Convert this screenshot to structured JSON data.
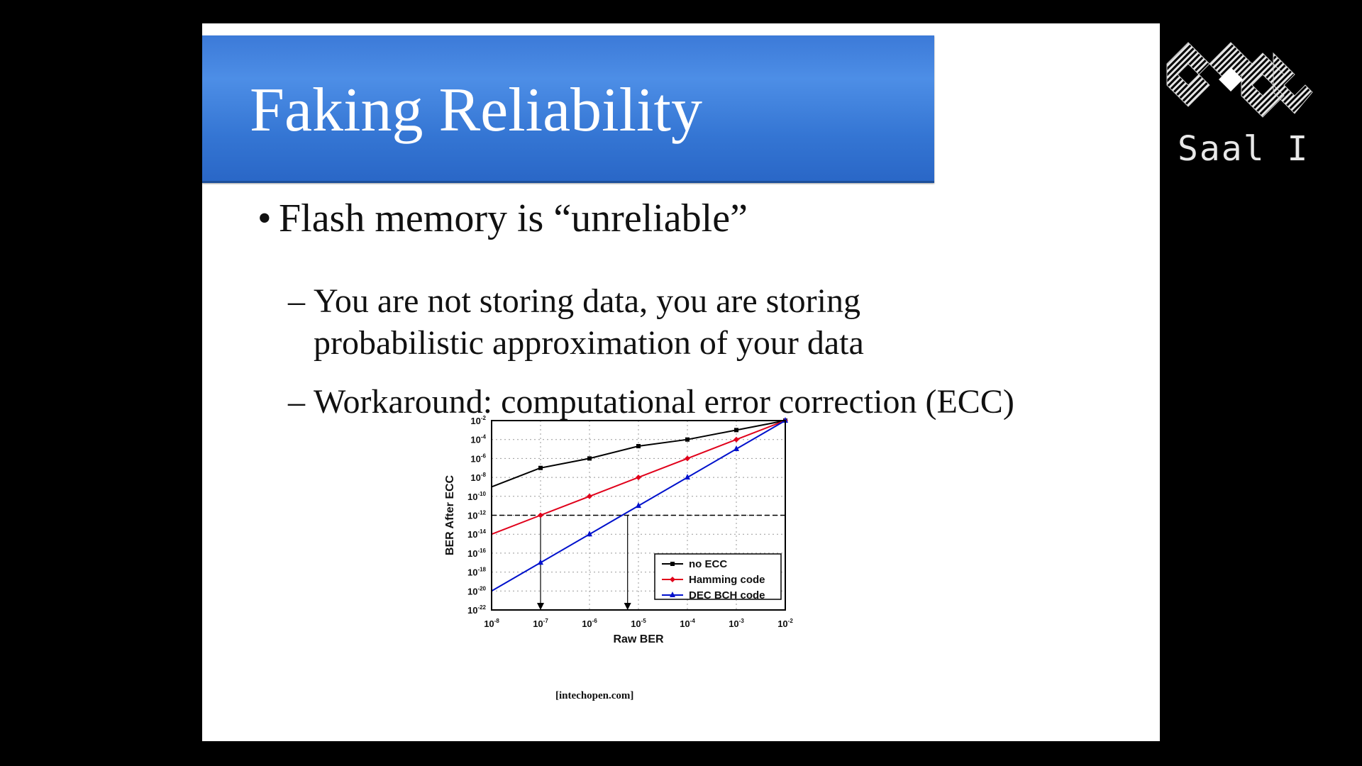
{
  "slide": {
    "title": "Faking Reliability",
    "bullet": "•",
    "bullet_text": "Flash memory is “unreliable”",
    "dash": "–",
    "sub1": "You are not storing data, you are storing probabilistic approximation of your data",
    "sub2": "Workaround: computational error correction (ECC)",
    "credit": "[intechopen.com]"
  },
  "overlay": {
    "room_label": "Saal I",
    "logo_icon": "conference-logo-icon"
  },
  "chart_data": {
    "type": "line",
    "xlabel": "Raw BER",
    "ylabel": "BER After ECC",
    "x_scale": "log",
    "y_scale": "log",
    "xlim": [
      1e-08,
      0.01
    ],
    "ylim": [
      1e-22,
      0.01
    ],
    "x_ticks": [
      "10^-8",
      "10^-7",
      "10^-6",
      "10^-5",
      "10^-4",
      "10^-3",
      "10^-2"
    ],
    "y_ticks": [
      "10^-2",
      "10^-4",
      "10^-6",
      "10^-8",
      "10^-10",
      "10^-12",
      "10^-14",
      "10^-16",
      "10^-18",
      "10^-20",
      "10^-22"
    ],
    "grid": true,
    "legend_position": "bottom-right",
    "threshold_y": 1e-12,
    "markers_x": [
      1e-07,
      6e-06
    ],
    "series": [
      {
        "name": "no ECC",
        "color": "#000000",
        "marker": "square",
        "x": [
          1e-08,
          1e-07,
          1e-06,
          1e-05,
          0.0001,
          0.001,
          0.01
        ],
        "y": [
          1e-09,
          1e-07,
          1e-06,
          2e-05,
          0.0001,
          0.001,
          0.01
        ]
      },
      {
        "name": "Hamming code",
        "color": "#e0001a",
        "marker": "diamond",
        "x": [
          1e-08,
          1e-07,
          1e-06,
          1e-05,
          0.0001,
          0.001,
          0.01
        ],
        "y": [
          1e-14,
          1e-12,
          1e-10,
          1e-08,
          1e-06,
          0.0001,
          0.01
        ]
      },
      {
        "name": "DEC BCH code",
        "color": "#0011cc",
        "marker": "triangle",
        "x": [
          1e-08,
          1e-07,
          1e-06,
          1e-05,
          0.0001,
          0.001,
          0.01
        ],
        "y": [
          1e-20,
          1e-17,
          1e-14,
          1e-11,
          1e-08,
          1e-05,
          0.01
        ]
      }
    ]
  }
}
